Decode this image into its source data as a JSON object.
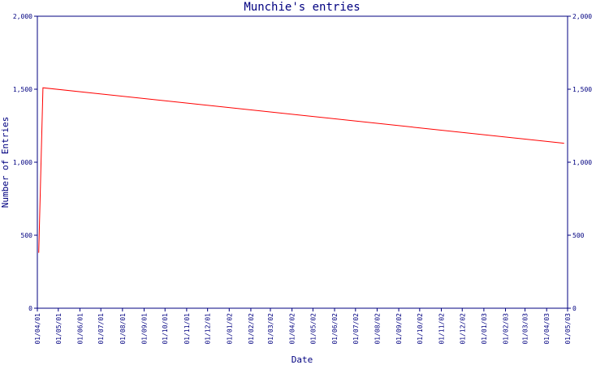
{
  "chart_data": {
    "type": "line",
    "title": "Munchie's entries",
    "xlabel": "Date",
    "ylabel": "Number of Entries",
    "ylim": [
      0,
      2000
    ],
    "y_ticks": [
      0,
      500,
      1000,
      1500,
      2000
    ],
    "y_tick_labels": [
      "0",
      "500",
      "1,000",
      "1,500",
      "2,000"
    ],
    "x_ticks": [
      "01/04/01",
      "01/05/01",
      "01/06/01",
      "01/07/01",
      "01/08/01",
      "01/09/01",
      "01/10/01",
      "01/11/01",
      "01/12/01",
      "01/01/02",
      "01/02/02",
      "01/03/02",
      "01/04/02",
      "01/05/02",
      "01/06/02",
      "01/07/02",
      "01/08/02",
      "01/09/02",
      "01/10/02",
      "01/11/02",
      "01/12/02",
      "01/01/03",
      "01/02/03",
      "01/03/03",
      "01/04/03",
      "01/05/03"
    ],
    "series": [
      {
        "color": "#ff0000",
        "points": [
          {
            "x": "2001-04-03",
            "y": 380
          },
          {
            "x": "2001-04-09",
            "y": 1510
          },
          {
            "x": "2003-04-26",
            "y": 1130
          }
        ]
      }
    ],
    "grid": false,
    "axis_color": "#000080"
  }
}
